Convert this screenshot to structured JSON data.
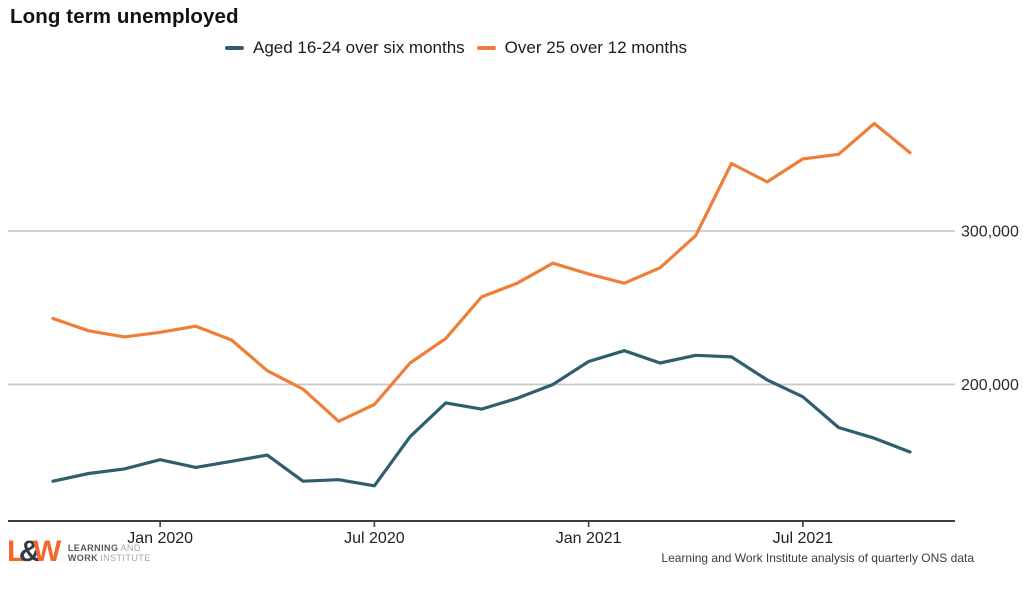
{
  "title": "Long term unemployed",
  "source_note": "Learning and Work Institute analysis of quarterly ONS data",
  "logo": {
    "l": "L",
    "amp": "&",
    "w": "W",
    "line1_bold": "LEARNING",
    "line1_light": "AND",
    "line2_bold": "WORK",
    "line2_light": "INSTITUTE",
    "brand_orange": "#f2692e",
    "brand_dark": "#333b44"
  },
  "colors": {
    "youth_line": "#2f5f6e",
    "adult_line": "#ef7f38",
    "gridline": "#c9c9c9",
    "axis": "#3d3d3d"
  },
  "chart_data": {
    "type": "line",
    "title": "Long term unemployed",
    "xlabel": "",
    "ylabel": "",
    "grid": "horizontal",
    "legend_position": "top",
    "ylim": [
      110000,
      395000
    ],
    "x": [
      "Oct 2019",
      "Nov 2019",
      "Dec 2019",
      "Jan 2020",
      "Feb 2020",
      "Mar 2020",
      "Apr 2020",
      "May 2020",
      "Jun 2020",
      "Jul 2020",
      "Aug 2020",
      "Sep 2020",
      "Oct 2020",
      "Nov 2020",
      "Dec 2020",
      "Jan 2021",
      "Feb 2021",
      "Mar 2021",
      "Apr 2021",
      "May 2021",
      "Jun 2021",
      "Jul 2021",
      "Aug 2021",
      "Sep 2021",
      "Oct 2021"
    ],
    "series": [
      {
        "name": "Aged 16-24 over six months",
        "color": "#2f5f6e",
        "values": [
          137000,
          142000,
          145000,
          151000,
          146000,
          150000,
          154000,
          137000,
          138000,
          134000,
          166000,
          188000,
          184000,
          191000,
          200000,
          215000,
          222000,
          214000,
          219000,
          218000,
          203000,
          192000,
          172000,
          165000,
          156000
        ]
      },
      {
        "name": "Over 25 over 12 months",
        "color": "#ef7f38",
        "values": [
          243000,
          235000,
          231000,
          234000,
          238000,
          229000,
          209000,
          197000,
          176000,
          187000,
          214000,
          230000,
          257000,
          266000,
          279000,
          272000,
          266000,
          276000,
          297000,
          344000,
          332000,
          347000,
          350000,
          370000,
          351000
        ]
      }
    ],
    "xticks": [
      {
        "index": 3,
        "label": "Jan 2020"
      },
      {
        "index": 9,
        "label": "Jul 2020"
      },
      {
        "index": 15,
        "label": "Jan 2021"
      },
      {
        "index": 21,
        "label": "Jul 2021"
      }
    ],
    "yticks": [
      {
        "value": 300000,
        "label": "300,000"
      },
      {
        "value": 200000,
        "label": "200,000"
      }
    ]
  }
}
